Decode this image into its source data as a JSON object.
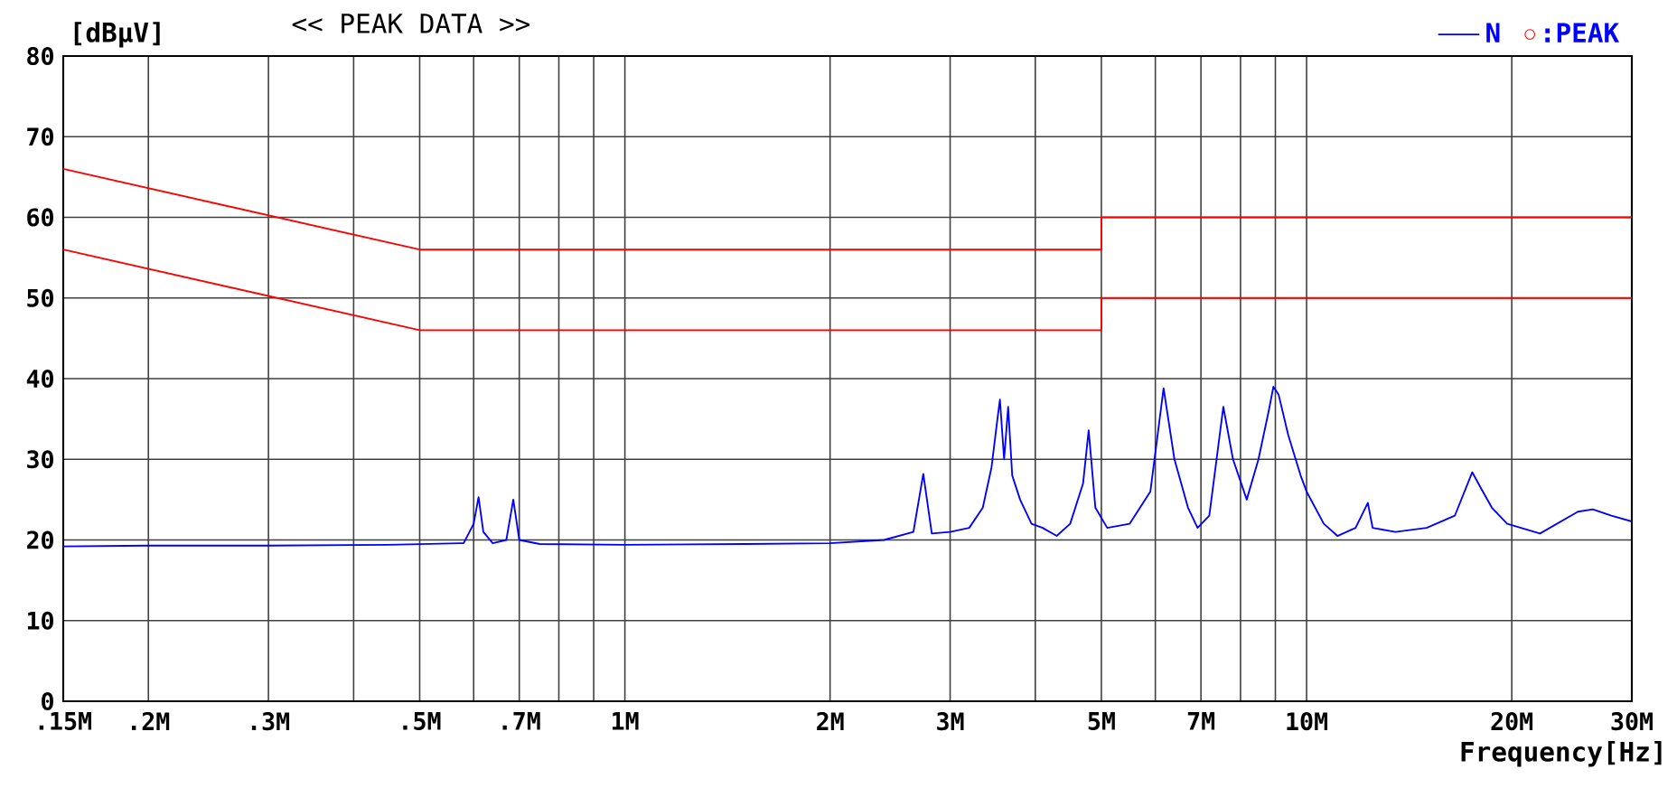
{
  "chart_data": {
    "type": "line",
    "title": "<< PEAK DATA >>",
    "ylabel": "[dBμV]",
    "xlabel": "Frequency[Hz]",
    "log": "x",
    "grid": true,
    "legend": "top right",
    "xlim": [
      0.15,
      30
    ],
    "ylim": [
      0,
      80
    ],
    "xticks": [
      {
        "value": 0.15,
        "label": ".15M"
      },
      {
        "value": 0.2,
        "label": ".2M"
      },
      {
        "value": 0.3,
        "label": ".3M"
      },
      {
        "value": 0.4,
        "label": null
      },
      {
        "value": 0.5,
        "label": ".5M"
      },
      {
        "value": 0.6,
        "label": null
      },
      {
        "value": 0.7,
        "label": ".7M"
      },
      {
        "value": 0.8,
        "label": null
      },
      {
        "value": 0.9,
        "label": null
      },
      {
        "value": 1,
        "label": "1M"
      },
      {
        "value": 2,
        "label": "2M"
      },
      {
        "value": 3,
        "label": "3M"
      },
      {
        "value": 4,
        "label": null
      },
      {
        "value": 5,
        "label": "5M"
      },
      {
        "value": 6,
        "label": null
      },
      {
        "value": 7,
        "label": "7M"
      },
      {
        "value": 8,
        "label": null
      },
      {
        "value": 9,
        "label": null
      },
      {
        "value": 10,
        "label": "10M"
      },
      {
        "value": 20,
        "label": "20M"
      },
      {
        "value": 30,
        "label": "30M"
      }
    ],
    "yticks": [
      0,
      10,
      20,
      30,
      40,
      50,
      60,
      70,
      80
    ],
    "series": [
      {
        "name": "N",
        "color": "#0000ff",
        "marker": "none",
        "x": [
          0.15,
          0.2,
          0.3,
          0.45,
          0.58,
          0.6,
          0.61,
          0.62,
          0.64,
          0.67,
          0.686,
          0.7,
          0.75,
          1.0,
          1.5,
          2.0,
          2.4,
          2.65,
          2.74,
          2.82,
          3.0,
          3.2,
          3.35,
          3.45,
          3.52,
          3.55,
          3.6,
          3.65,
          3.7,
          3.8,
          3.95,
          4.1,
          4.3,
          4.5,
          4.7,
          4.79,
          4.9,
          5.1,
          5.5,
          5.9,
          6.17,
          6.4,
          6.7,
          6.92,
          7.2,
          7.55,
          7.8,
          8.17,
          8.5,
          8.8,
          8.94,
          9.1,
          9.4,
          9.8,
          10.0,
          10.6,
          11.1,
          11.8,
          12.3,
          12.5,
          13.5,
          15.0,
          16.5,
          17.5,
          18.0,
          18.7,
          19.7,
          22.0,
          25.0,
          26.3,
          28.0,
          30.0
        ],
        "values": [
          19.2,
          19.3,
          19.3,
          19.4,
          19.6,
          22,
          25.3,
          21,
          19.6,
          20,
          25.0,
          20,
          19.5,
          19.4,
          19.5,
          19.6,
          20.0,
          21,
          28.2,
          20.8,
          21,
          21.5,
          24,
          29,
          35,
          37.4,
          30,
          36.5,
          28,
          25,
          22,
          21.5,
          20.5,
          22,
          27,
          33.6,
          24,
          21.5,
          22,
          26,
          38.8,
          30,
          24,
          21.5,
          23,
          36.5,
          30,
          25,
          30,
          36,
          39,
          38,
          33,
          28,
          26,
          22,
          20.5,
          21.5,
          24.6,
          21.5,
          21,
          21.5,
          23,
          28.4,
          26.5,
          24,
          22,
          20.8,
          23.5,
          23.8,
          23,
          22.3
        ]
      },
      {
        "color": "#ff0000",
        "marker": "none",
        "x": [
          0.15,
          0.5,
          0.5,
          5,
          5,
          30
        ],
        "values": [
          66,
          56,
          56,
          56,
          60,
          60
        ]
      },
      {
        "color": "#ff0000",
        "marker": "none",
        "x": [
          0.15,
          0.5,
          0.5,
          5,
          5,
          30
        ],
        "values": [
          56,
          46,
          46,
          46,
          50,
          50
        ]
      },
      {
        "name": ":PEAK",
        "type": "scatter",
        "color": "#ff0000",
        "marker": "circle"
      }
    ]
  }
}
